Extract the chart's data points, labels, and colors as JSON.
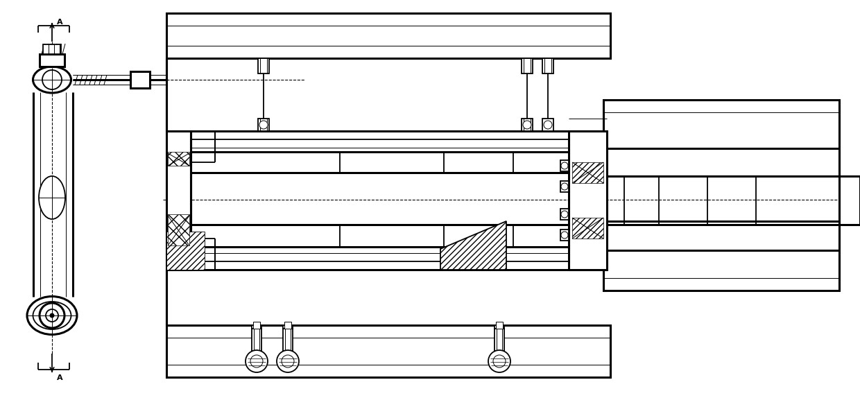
{
  "bg_color": "#ffffff",
  "line_color": "#000000",
  "lw_thick": 2.2,
  "lw_medium": 1.3,
  "lw_thin": 0.7,
  "lw_dashed": 0.8,
  "fig_width": 12.4,
  "fig_height": 5.74
}
